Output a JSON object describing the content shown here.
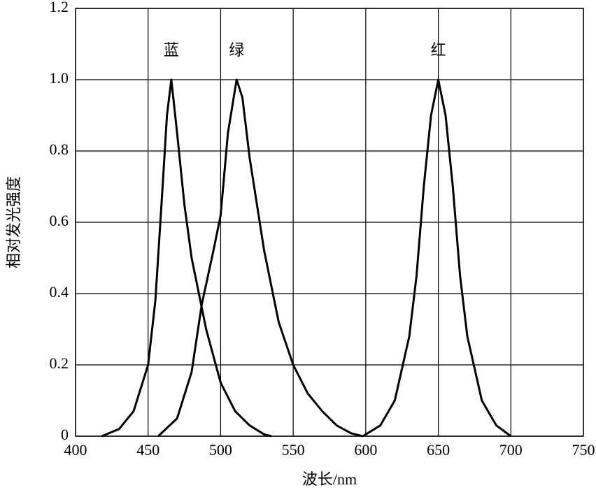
{
  "chart_data": {
    "type": "line",
    "x_label": "波长/nm",
    "y_label": "相对发光强度",
    "xlim": [
      400,
      750
    ],
    "xticks": [
      400,
      450,
      500,
      550,
      600,
      650,
      700,
      750
    ],
    "ylim": [
      0,
      1.2
    ],
    "yticks": [
      0,
      0.2,
      0.4,
      0.6,
      0.8,
      {
        "value": 1,
        "label": "1.0"
      },
      1.2
    ],
    "grid": true,
    "series": [
      {
        "name": "蓝",
        "color": "#000000",
        "x": [
          418,
          430,
          440,
          450,
          455,
          460,
          463,
          466,
          470,
          475,
          480,
          490,
          500,
          510,
          520,
          530,
          535
        ],
        "values": [
          0,
          0.02,
          0.07,
          0.2,
          0.38,
          0.7,
          0.9,
          1.0,
          0.85,
          0.65,
          0.5,
          0.3,
          0.15,
          0.07,
          0.03,
          0.005,
          0
        ]
      },
      {
        "name": "绿",
        "color": "#000000",
        "x": [
          457,
          470,
          480,
          487,
          495,
          500,
          505,
          511,
          515,
          520,
          530,
          540,
          550,
          560,
          570,
          580,
          590,
          598
        ],
        "values": [
          0,
          0.05,
          0.18,
          0.37,
          0.52,
          0.62,
          0.85,
          1.0,
          0.95,
          0.78,
          0.52,
          0.32,
          0.2,
          0.12,
          0.07,
          0.03,
          0.008,
          0
        ]
      },
      {
        "name": "红",
        "color": "#000000",
        "x": [
          598,
          610,
          620,
          630,
          635,
          640,
          645,
          650,
          655,
          660,
          665,
          670,
          680,
          690,
          700
        ],
        "values": [
          0,
          0.03,
          0.1,
          0.28,
          0.45,
          0.7,
          0.9,
          1.0,
          0.9,
          0.7,
          0.45,
          0.28,
          0.1,
          0.03,
          0
        ]
      }
    ]
  }
}
